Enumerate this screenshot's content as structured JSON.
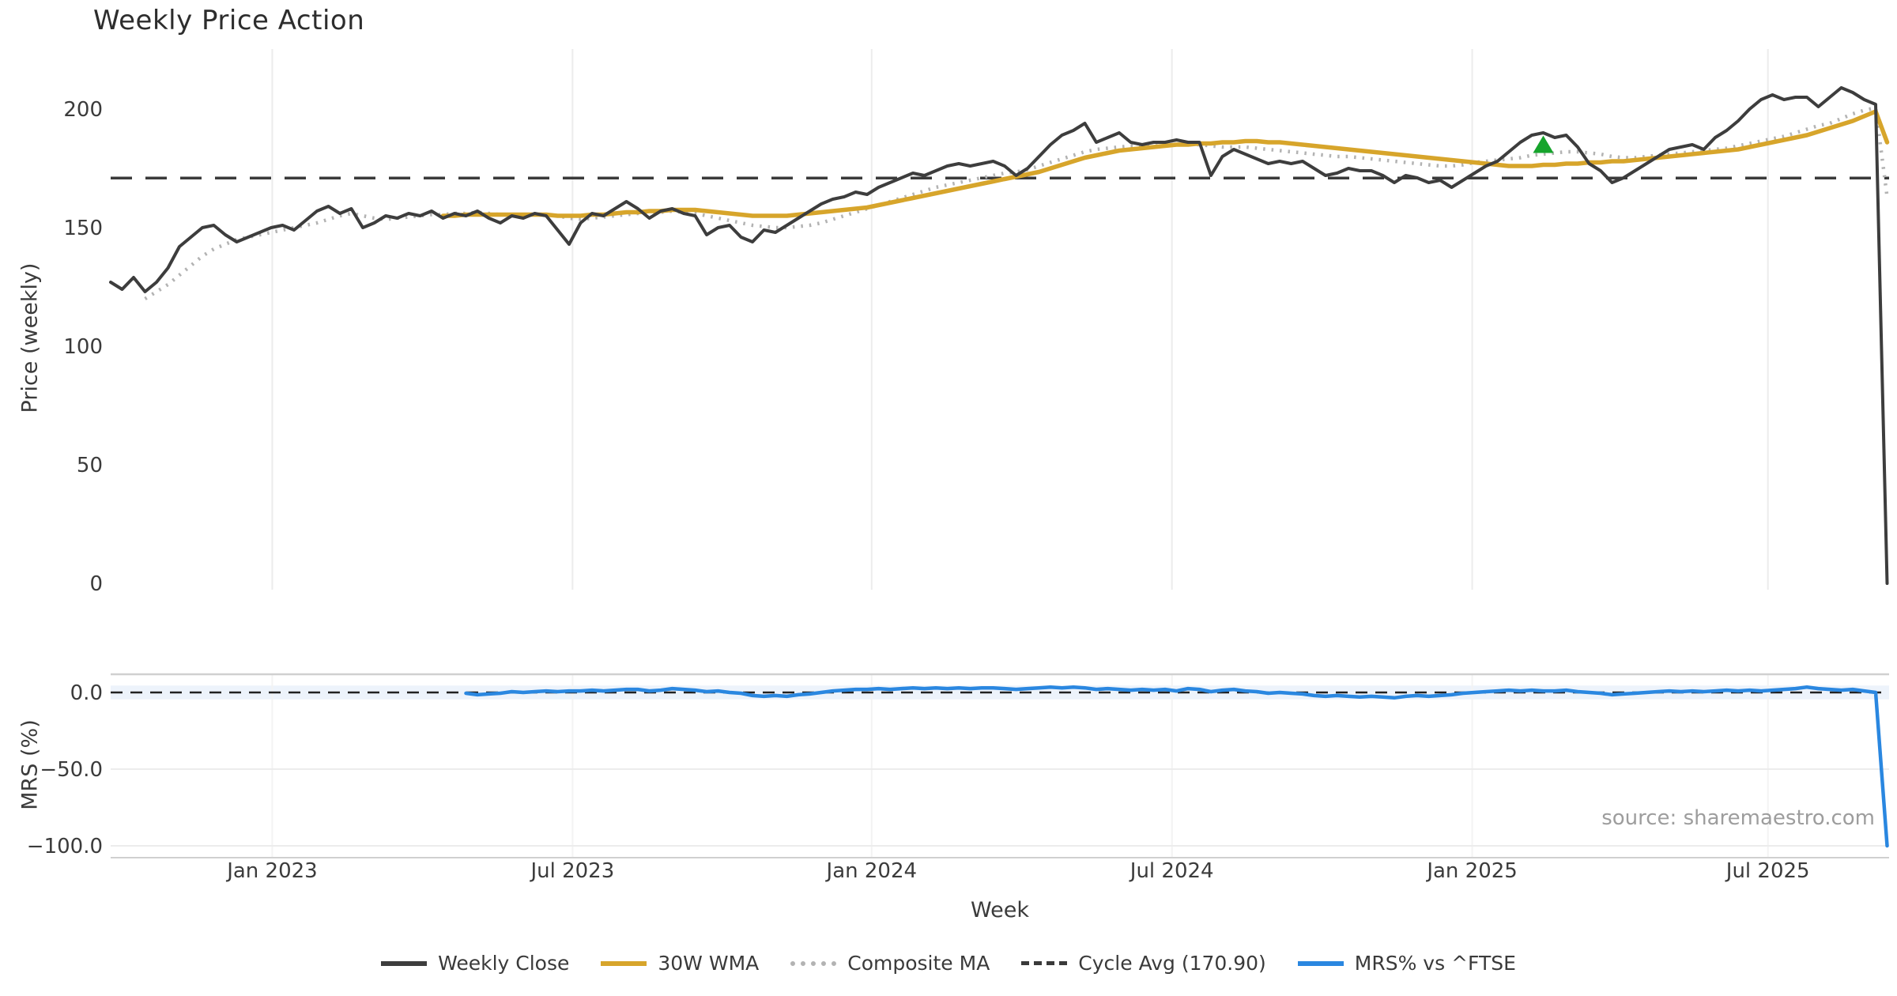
{
  "chart_data": {
    "type": "line",
    "title": "Weekly Price Action",
    "source_note": "source: sharemaestro.com",
    "colors": {
      "weekly_close": "#3d3d3d",
      "wma": "#d7a52b",
      "composite": "#b3b3b3",
      "cycle_avg": "#3a3a3a",
      "mrs": "#2a87e0",
      "signal_marker": "#16a42c",
      "grid": "#ececec",
      "spine": "#d0d0d0",
      "zero_band": "#edf3fb",
      "tick_text": "#3b3b3b"
    },
    "x_axis": {
      "label": "Week",
      "ticks": [
        {
          "label": "Jan 2023",
          "week": 14.1
        },
        {
          "label": "Jul 2023",
          "week": 40.3
        },
        {
          "label": "Jan 2024",
          "week": 66.4
        },
        {
          "label": "Jul 2024",
          "week": 92.6
        },
        {
          "label": "Jan 2025",
          "week": 118.8
        },
        {
          "label": "Jul 2025",
          "week": 144.6
        }
      ]
    },
    "main_panel": {
      "y_label": "Price (weekly)",
      "ylim": [
        0,
        225
      ],
      "y_ticks": [
        {
          "label": "200",
          "value": 200
        },
        {
          "label": "150",
          "value": 150
        },
        {
          "label": "100",
          "value": 100
        },
        {
          "label": "50",
          "value": 50
        },
        {
          "label": "0",
          "value": 0
        }
      ],
      "cycle_avg_value": 170.9,
      "signal_marker": {
        "shape": "triangle-up",
        "week": 125,
        "value": 184.5
      },
      "series": [
        {
          "name": "Weekly Close",
          "style": "solid",
          "width": 4,
          "color_key": "weekly_close",
          "start_week": 0,
          "values": [
            127,
            124,
            129,
            123,
            127,
            133,
            142,
            146,
            150,
            151,
            147,
            144,
            146,
            148,
            150,
            151,
            149,
            153,
            157,
            159,
            156,
            158,
            150,
            152,
            155,
            154,
            156,
            155,
            157,
            154,
            156,
            155,
            157,
            154,
            152,
            155,
            154,
            156,
            155,
            149,
            143,
            152,
            156,
            155,
            158,
            161,
            158,
            154,
            157,
            158,
            156,
            155,
            147,
            150,
            151,
            146,
            144,
            149,
            148,
            151,
            154,
            157,
            160,
            162,
            163,
            165,
            164,
            167,
            169,
            171,
            173,
            172,
            174,
            176,
            177,
            176,
            177,
            178,
            176,
            172,
            175,
            180,
            185,
            189,
            191,
            194,
            186,
            188,
            190,
            186,
            185,
            186,
            186,
            187,
            186,
            186,
            172,
            180,
            183,
            181,
            179,
            177,
            178,
            177,
            178,
            175,
            172,
            173,
            175,
            174,
            174,
            172,
            169,
            172,
            171,
            169,
            170,
            167,
            170,
            173,
            176,
            178,
            182,
            186,
            189,
            190,
            188,
            189,
            184,
            177,
            174,
            169,
            171,
            174,
            177,
            180,
            183,
            184,
            185,
            183,
            188,
            191,
            195,
            200,
            204,
            206,
            204,
            205,
            205,
            201,
            205,
            209,
            207,
            204,
            202,
            0
          ]
        },
        {
          "name": "30W WMA",
          "style": "solid",
          "width": 5.5,
          "color_key": "wma",
          "start_week": 29,
          "values": [
            155,
            155,
            155.5,
            155.5,
            155.5,
            155.5,
            155.5,
            155.5,
            155.5,
            155.5,
            155,
            155,
            155,
            155.5,
            155.5,
            156,
            156.5,
            156.5,
            157,
            157,
            157.5,
            157.5,
            157.5,
            157,
            156.5,
            156,
            155.5,
            155,
            155,
            155,
            155,
            155.5,
            156,
            156.5,
            157,
            157.5,
            158,
            158.5,
            159.5,
            160.5,
            161.5,
            162.5,
            163.5,
            164.5,
            165.5,
            166.5,
            167.5,
            168.5,
            169.5,
            170.5,
            171.5,
            172.5,
            173.5,
            175,
            176.5,
            178,
            179.5,
            180.5,
            181.5,
            182.5,
            183,
            183.5,
            184,
            184.5,
            185,
            185,
            185.5,
            185.5,
            186,
            186,
            186.5,
            186.5,
            186,
            186,
            185.5,
            185,
            184.5,
            184,
            183.5,
            183,
            182.5,
            182,
            181.5,
            181,
            180.5,
            180,
            179.5,
            179,
            178.5,
            178,
            177.5,
            177,
            176.5,
            176,
            176,
            176,
            176.5,
            176.5,
            177,
            177,
            177.5,
            177.5,
            178,
            178,
            178.5,
            179,
            179.5,
            180,
            180.5,
            181,
            181.5,
            182,
            182.5,
            183,
            184,
            185,
            186,
            187,
            188,
            189,
            190.5,
            192,
            193.5,
            195,
            197,
            199,
            186
          ]
        },
        {
          "name": "Composite MA",
          "style": "dotted",
          "width": 4.5,
          "color_key": "composite",
          "start_week": 3,
          "values": [
            120,
            123,
            126,
            130,
            134,
            138,
            141,
            143,
            145,
            146,
            147,
            148,
            149,
            150,
            151,
            152,
            153.5,
            155,
            156,
            155,
            154,
            153.5,
            154,
            154.5,
            155,
            155.5,
            155.5,
            156,
            156,
            156.5,
            156,
            155.5,
            155.5,
            155.5,
            155.5,
            155.5,
            155,
            154,
            153.5,
            154,
            154.5,
            155,
            155.5,
            156,
            156,
            156.5,
            157,
            156.5,
            156,
            155,
            154,
            153,
            152,
            151,
            150.5,
            150,
            150,
            150.5,
            151,
            152,
            153.5,
            155,
            156.5,
            158,
            159.5,
            161,
            162.5,
            164,
            165.5,
            167,
            168,
            169,
            170,
            171,
            172,
            173,
            173.5,
            174.5,
            176,
            177.5,
            179,
            180.5,
            182,
            183,
            183.5,
            184,
            184.5,
            184.5,
            184.5,
            184.5,
            185,
            185,
            185,
            184.5,
            184,
            184,
            184,
            183.5,
            183,
            182.5,
            182,
            181.5,
            181,
            180.5,
            180,
            180,
            179.5,
            179,
            178.5,
            178,
            177.5,
            177,
            176.5,
            176,
            176,
            176.5,
            177.5,
            178,
            178.5,
            179,
            179.5,
            180.5,
            181,
            181.5,
            182,
            182,
            181.5,
            181,
            180,
            179.5,
            179.5,
            180,
            180.5,
            181,
            181.5,
            182,
            182.5,
            183,
            183.5,
            184.5,
            185.5,
            186.5,
            187.5,
            188.5,
            190,
            191.5,
            193,
            194,
            196,
            198,
            199.5,
            200.5,
            163
          ]
        }
      ]
    },
    "mrs_panel": {
      "y_label": "MRS (%)",
      "y_ticks": [
        {
          "label": "0.0",
          "value": 0
        },
        {
          "label": "−50.0",
          "value": -50
        },
        {
          "label": "−100.0",
          "value": -100
        }
      ],
      "zero_band": {
        "from": 4.5,
        "to": -4.5
      },
      "series": [
        {
          "name": "MRS% vs ^FTSE",
          "style": "solid",
          "width": 4.5,
          "color_key": "mrs",
          "start_week": 31,
          "values": [
            -0.5,
            -1.5,
            -1,
            -0.5,
            0.5,
            0,
            0.5,
            1,
            0.5,
            1,
            1,
            1.5,
            1,
            1.5,
            2,
            2,
            1,
            1.5,
            2.5,
            2,
            1.5,
            0.5,
            1,
            0,
            -0.5,
            -2,
            -2.5,
            -2,
            -2.5,
            -1.5,
            -1,
            0,
            1,
            1.5,
            2,
            2,
            2.5,
            2,
            2.5,
            3,
            2.5,
            3,
            2.5,
            3,
            2.5,
            3,
            3,
            2.5,
            2,
            2.5,
            3,
            3.5,
            3,
            3.5,
            3,
            2,
            2.5,
            2,
            1.5,
            2,
            1.5,
            2,
            1,
            2.5,
            2,
            0.5,
            1.5,
            2,
            1,
            0.5,
            -0.5,
            0,
            -0.5,
            -1,
            -2,
            -2.5,
            -2,
            -2.5,
            -3,
            -2.5,
            -3,
            -3.5,
            -2.5,
            -2,
            -2.5,
            -2,
            -1.5,
            -0.5,
            0,
            0.5,
            1,
            1.5,
            1,
            1.5,
            1,
            1,
            1.5,
            0.5,
            0,
            -0.5,
            -1.5,
            -1,
            -0.5,
            0,
            0.5,
            1,
            0.5,
            1,
            0.5,
            1,
            1.5,
            1,
            1.5,
            1,
            1.5,
            2,
            2.5,
            3.5,
            2.5,
            2,
            1.5,
            2,
            1,
            0,
            -100
          ]
        }
      ]
    },
    "legend": [
      {
        "label": "Weekly Close",
        "style": "solid",
        "color_key": "weekly_close"
      },
      {
        "label": "30W WMA",
        "style": "solid",
        "color_key": "wma"
      },
      {
        "label": "Composite MA",
        "style": "dotted",
        "color_key": "composite"
      },
      {
        "label": "Cycle Avg (170.90)",
        "style": "dashed",
        "color_key": "cycle_avg"
      },
      {
        "label": "MRS% vs ^FTSE",
        "style": "solid",
        "color_key": "mrs"
      }
    ]
  }
}
